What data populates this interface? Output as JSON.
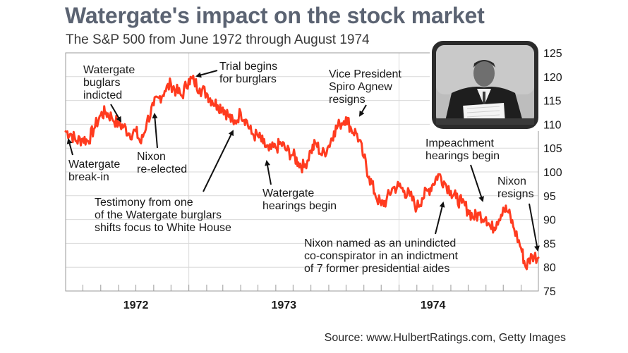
{
  "header": {
    "title": "Watergate's impact on the stock market",
    "subtitle": "The S&P 500 from June 1972 through August 1974"
  },
  "footer": {
    "source": "Source: www.HulbertRatings.com, Getty Images"
  },
  "photo": {
    "description_icon": "tv-photo-icon"
  },
  "colors": {
    "line": "#ff3b1f",
    "grid": "#d9d9d9",
    "title": "#5b6372",
    "plot_border": "#9a9a9a"
  },
  "chart_data": {
    "type": "line",
    "title": "Watergate's impact on the stock market",
    "subtitle": "The S&P 500 from June 1972 through August 1974",
    "ylim": [
      75,
      125
    ],
    "yticks": [
      75,
      80,
      85,
      90,
      95,
      100,
      105,
      110,
      115,
      120,
      125
    ],
    "ytick_labels": [
      "75",
      "80",
      "85",
      "90",
      "95",
      "100",
      "105",
      "110",
      "115",
      "120",
      "125"
    ],
    "y_axis_position": "right",
    "xlim": [
      "1972-06-01",
      "1974-08-31"
    ],
    "xticks": [
      "1972-07-01",
      "1972-08-01",
      "1972-09-01",
      "1972-10-01",
      "1972-11-01",
      "1972-12-01",
      "1973-01-01",
      "1973-02-01",
      "1973-03-01",
      "1973-04-01",
      "1973-05-01",
      "1973-06-01",
      "1973-07-01",
      "1973-08-01",
      "1973-09-01",
      "1973-10-01",
      "1973-11-01",
      "1973-12-01",
      "1974-01-01",
      "1974-02-01",
      "1974-03-01",
      "1974-04-01",
      "1974-05-01",
      "1974-06-01",
      "1974-07-01",
      "1974-08-01"
    ],
    "year_labels": [
      {
        "label": "1972",
        "date": "1972-10-01"
      },
      {
        "label": "1973",
        "date": "1973-06-15"
      },
      {
        "label": "1974",
        "date": "1974-03-01"
      }
    ],
    "year_separators": [
      "1973-01-01",
      "1974-01-01"
    ],
    "grid": true,
    "series": [
      {
        "color": "#ff3b1f",
        "x": [
          "1972-06-01",
          "1972-06-10",
          "1972-06-20",
          "1972-07-01",
          "1972-07-10",
          "1972-07-20",
          "1972-08-01",
          "1972-08-10",
          "1972-08-20",
          "1972-09-01",
          "1972-09-10",
          "1972-09-20",
          "1972-10-01",
          "1972-10-10",
          "1972-10-20",
          "1972-11-01",
          "1972-11-10",
          "1972-11-20",
          "1972-12-01",
          "1972-12-10",
          "1972-12-20",
          "1973-01-01",
          "1973-01-10",
          "1973-01-20",
          "1973-02-01",
          "1973-02-10",
          "1973-02-20",
          "1973-03-01",
          "1973-03-10",
          "1973-03-20",
          "1973-04-01",
          "1973-04-10",
          "1973-04-20",
          "1973-05-01",
          "1973-05-10",
          "1973-05-20",
          "1973-06-01",
          "1973-06-10",
          "1973-06-20",
          "1973-07-01",
          "1973-07-10",
          "1973-07-20",
          "1973-08-01",
          "1973-08-10",
          "1973-08-20",
          "1973-09-01",
          "1973-09-10",
          "1973-09-20",
          "1973-10-01",
          "1973-10-10",
          "1973-10-20",
          "1973-11-01",
          "1973-11-10",
          "1973-11-20",
          "1973-12-01",
          "1973-12-10",
          "1973-12-20",
          "1974-01-01",
          "1974-01-10",
          "1974-01-20",
          "1974-02-01",
          "1974-02-10",
          "1974-02-20",
          "1974-03-01",
          "1974-03-10",
          "1974-03-20",
          "1974-04-01",
          "1974-04-10",
          "1974-04-20",
          "1974-05-01",
          "1974-05-10",
          "1974-05-20",
          "1974-06-01",
          "1974-06-10",
          "1974-06-20",
          "1974-07-01",
          "1974-07-10",
          "1974-07-20",
          "1974-08-01",
          "1974-08-09",
          "1974-08-20",
          "1974-08-31"
        ],
        "values": [
          108.5,
          108.0,
          106.5,
          107.0,
          106.5,
          109.0,
          112.0,
          112.5,
          111.5,
          110.0,
          109.5,
          108.0,
          108.5,
          106.0,
          110.5,
          114.0,
          115.5,
          117.0,
          118.5,
          117.0,
          116.0,
          119.5,
          119.0,
          117.5,
          116.5,
          115.0,
          114.0,
          113.5,
          112.0,
          110.0,
          112.5,
          111.0,
          108.0,
          107.5,
          106.0,
          104.5,
          105.0,
          106.0,
          104.5,
          103.5,
          102.0,
          101.0,
          104.5,
          106.0,
          103.5,
          105.5,
          108.5,
          110.0,
          111.5,
          109.0,
          108.0,
          103.0,
          99.0,
          95.5,
          93.0,
          94.0,
          96.5,
          97.0,
          96.0,
          95.0,
          92.5,
          94.5,
          96.0,
          97.5,
          99.5,
          98.0,
          96.0,
          94.5,
          93.5,
          92.0,
          90.5,
          91.0,
          90.5,
          88.0,
          89.5,
          92.5,
          91.5,
          88.0,
          84.0,
          80.0,
          82.5,
          82.0
        ]
      }
    ],
    "annotations": [
      {
        "lines": [
          "Watergate",
          "break-in"
        ],
        "date": "1972-06-17",
        "value": 108.0
      },
      {
        "lines": [
          "Watergate",
          "buglars",
          "indicted"
        ],
        "date": "1972-09-15",
        "value": 109.5
      },
      {
        "lines": [
          "Nixon",
          "re-elected"
        ],
        "date": "1972-11-07",
        "value": 110.5
      },
      {
        "lines": [
          "Trial begins",
          "for burglars"
        ],
        "date": "1973-01-08",
        "value": 119.5
      },
      {
        "lines": [
          "Testimony from one",
          "of the Watergate burglars",
          "shifts focus to White House"
        ],
        "date": "1973-03-23",
        "value": 110.0
      },
      {
        "lines": [
          "Watergate",
          "hearings begin"
        ],
        "date": "1973-05-17",
        "value": 104.5
      },
      {
        "lines": [
          "Vice President",
          "Spiro Agnew",
          "resigns"
        ],
        "date": "1973-10-10",
        "value": 111.0
      },
      {
        "lines": [
          "Nixon named as an unindicted",
          "co-conspirator in an indictment",
          "of 7 former presidential aides"
        ],
        "date": "1974-03-01",
        "value": 96.0
      },
      {
        "lines": [
          "Impeachment",
          "hearings begin"
        ],
        "date": "1974-05-09",
        "value": 92.5
      },
      {
        "lines": [
          "Nixon",
          "resigns"
        ],
        "date": "1974-08-09",
        "value": 81.5
      }
    ]
  }
}
